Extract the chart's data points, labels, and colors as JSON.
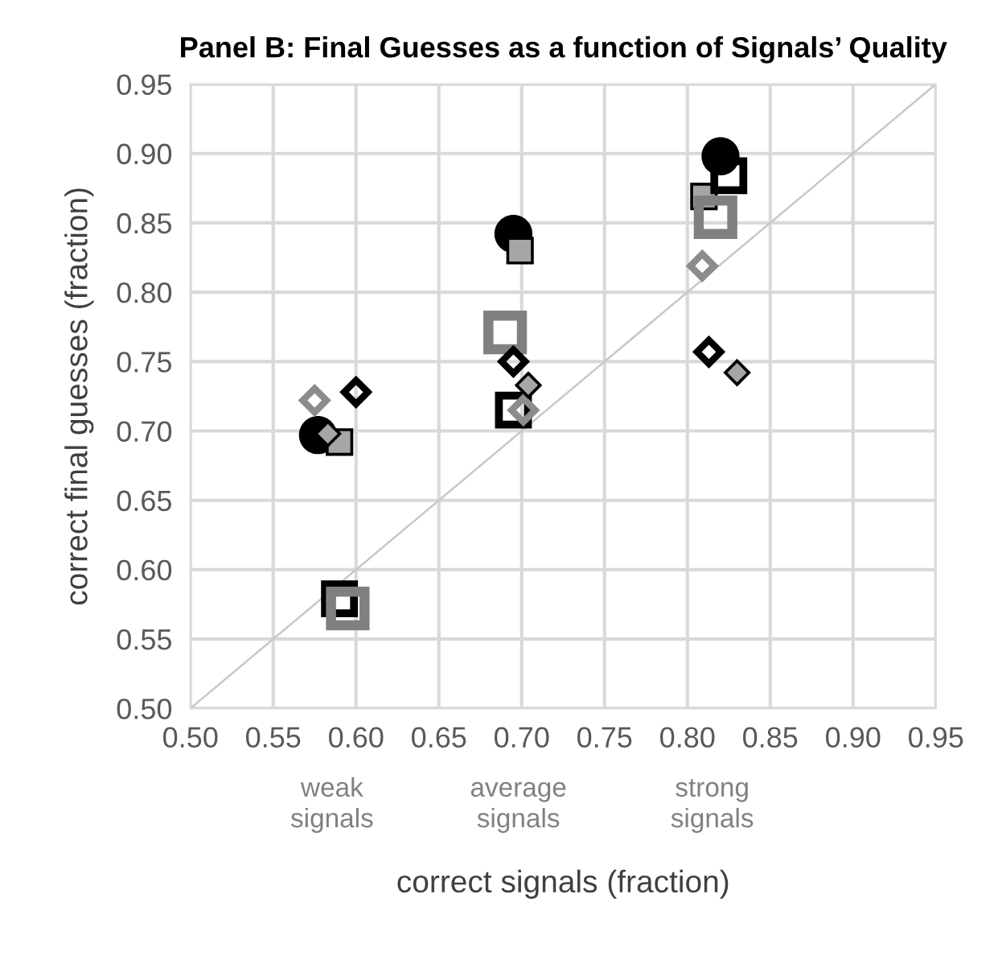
{
  "chart_data": {
    "type": "scatter",
    "title": "Panel B: Final Guesses as a function of Signals’ Quality",
    "xlabel": "correct signals (fraction)",
    "ylabel": "correct final guesses (fraction)",
    "xlim": [
      0.5,
      0.95
    ],
    "ylim": [
      0.5,
      0.95
    ],
    "xticks": [
      {
        "value": 0.5,
        "label": "0.50"
      },
      {
        "value": 0.55,
        "label": "0.55"
      },
      {
        "value": 0.6,
        "label": "0.60"
      },
      {
        "value": 0.65,
        "label": "0.65"
      },
      {
        "value": 0.7,
        "label": "0.70"
      },
      {
        "value": 0.75,
        "label": "0.75"
      },
      {
        "value": 0.8,
        "label": "0.80"
      },
      {
        "value": 0.85,
        "label": "0.85"
      },
      {
        "value": 0.9,
        "label": "0.90"
      },
      {
        "value": 0.95,
        "label": "0.95"
      }
    ],
    "yticks": [
      {
        "value": 0.5,
        "label": "0.50"
      },
      {
        "value": 0.55,
        "label": "0.55"
      },
      {
        "value": 0.6,
        "label": "0.60"
      },
      {
        "value": 0.65,
        "label": "0.65"
      },
      {
        "value": 0.7,
        "label": "0.70"
      },
      {
        "value": 0.75,
        "label": "0.75"
      },
      {
        "value": 0.8,
        "label": "0.80"
      },
      {
        "value": 0.85,
        "label": "0.85"
      },
      {
        "value": 0.9,
        "label": "0.90"
      },
      {
        "value": 0.95,
        "label": "0.95"
      }
    ],
    "grid": true,
    "legend": false,
    "series": [
      {
        "type": "line",
        "color": "#c8c8c8",
        "marker": "none",
        "x": [
          0.5,
          0.95
        ],
        "values": [
          0.5,
          0.95
        ]
      },
      {
        "color": "#000000",
        "marker": "circle",
        "x": [
          0.577,
          0.695,
          0.82
        ],
        "values": [
          0.697,
          0.842,
          0.898
        ]
      },
      {
        "color": "#a6a6a6",
        "marker": "square",
        "x": [
          0.59,
          0.699,
          0.81
        ],
        "values": [
          0.692,
          0.83,
          0.869
        ]
      },
      {
        "color": "#000000",
        "marker": "square",
        "x": [
          0.59,
          0.695,
          0.825
        ],
        "values": [
          0.579,
          0.715,
          0.884
        ]
      },
      {
        "color": "#808080",
        "marker": "square",
        "x": [
          0.595,
          0.69,
          0.817
        ],
        "values": [
          0.572,
          0.771,
          0.854
        ]
      },
      {
        "color": "#8c8c8c",
        "marker": "diamond",
        "x": [
          0.575,
          0.701,
          0.809
        ],
        "values": [
          0.722,
          0.715,
          0.819
        ]
      },
      {
        "color": "#000000",
        "marker": "diamond",
        "x": [
          0.6,
          0.695,
          0.813
        ],
        "values": [
          0.728,
          0.75,
          0.757
        ]
      },
      {
        "color": "#a6a6a6",
        "marker": "diamond",
        "x": [
          0.583,
          0.704,
          0.83
        ],
        "values": [
          0.698,
          0.733,
          0.742
        ]
      }
    ],
    "annotations": [
      "weak\nsignals",
      "average\nsignals",
      "strong\nsignals"
    ]
  }
}
